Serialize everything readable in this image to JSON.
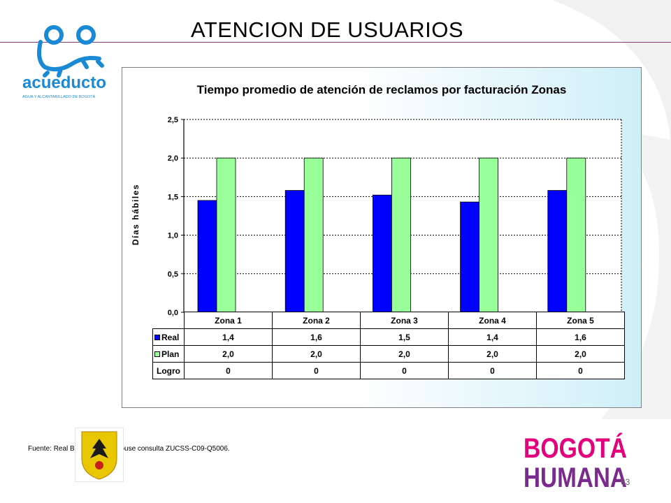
{
  "slide": {
    "title": "ATENCION DE USUARIOS",
    "source": "Fuente: Real  Business Warehouse consulta ZUCSS-C09-Q5006.",
    "page_number": "63"
  },
  "logos": {
    "acueducto": {
      "name": "acueducto",
      "tagline": "AGUA Y ALCANTARILLADO DE BOGOTÁ"
    },
    "bogota": {
      "line1": "BOGOTÁ",
      "line2": "HUMANA"
    }
  },
  "colors": {
    "real": "#0000ff",
    "plan": "#99ff99",
    "title_line": "#8a3b7c"
  },
  "chart_data": {
    "type": "bar",
    "title": "Tiempo promedio de atención de reclamos por facturación  Zonas",
    "ylabel": "Días hábiles",
    "xlabel": "",
    "ylim": [
      0,
      2.5
    ],
    "yticks": [
      "0,0",
      "0,5",
      "1,0",
      "1,5",
      "2,0",
      "2,5"
    ],
    "categories": [
      "Zona 1",
      "Zona 2",
      "Zona 3",
      "Zona 4",
      "Zona 5"
    ],
    "series": [
      {
        "name": "Real",
        "values": [
          1.45,
          1.58,
          1.52,
          1.43,
          1.58
        ]
      },
      {
        "name": "Plan",
        "values": [
          2.0,
          2.0,
          2.0,
          2.0,
          2.0
        ]
      }
    ],
    "grid": true,
    "legend": "table-below",
    "table": {
      "rows": [
        {
          "label": "Real",
          "values": [
            "1,4",
            "1,6",
            "1,5",
            "1,4",
            "1,6"
          ]
        },
        {
          "label": "Plan",
          "values": [
            "2,0",
            "2,0",
            "2,0",
            "2,0",
            "2,0"
          ]
        },
        {
          "label": "Logro",
          "values": [
            "0",
            "0",
            "0",
            "0",
            "0"
          ]
        }
      ]
    }
  }
}
